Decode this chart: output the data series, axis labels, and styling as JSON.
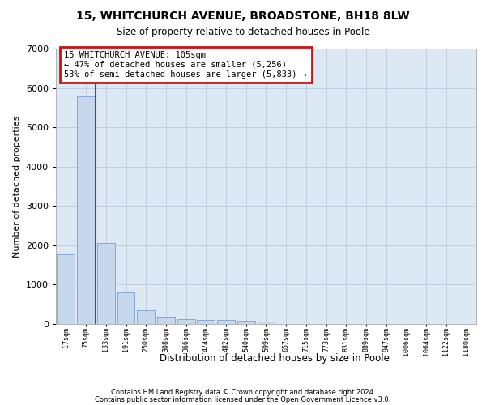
{
  "title1": "15, WHITCHURCH AVENUE, BROADSTONE, BH18 8LW",
  "title2": "Size of property relative to detached houses in Poole",
  "xlabel": "Distribution of detached houses by size in Poole",
  "ylabel": "Number of detached properties",
  "footer1": "Contains HM Land Registry data © Crown copyright and database right 2024.",
  "footer2": "Contains public sector information licensed under the Open Government Licence v3.0.",
  "annotation_line1": "15 WHITCHURCH AVENUE: 105sqm",
  "annotation_line2": "← 47% of detached houses are smaller (5,256)",
  "annotation_line3": "53% of semi-detached houses are larger (5,833) →",
  "bar_color": "#c5d8ee",
  "bar_edge_color": "#7aa0c8",
  "red_line_color": "#bb2222",
  "annotation_box_facecolor": "#ffffff",
  "annotation_box_edgecolor": "#cc1111",
  "background_color": "#ffffff",
  "axes_facecolor": "#dde8f5",
  "grid_color": "#c0cfe0",
  "categories": [
    "17sqm",
    "75sqm",
    "133sqm",
    "191sqm",
    "250sqm",
    "308sqm",
    "366sqm",
    "424sqm",
    "482sqm",
    "540sqm",
    "599sqm",
    "657sqm",
    "715sqm",
    "773sqm",
    "831sqm",
    "889sqm",
    "947sqm",
    "1006sqm",
    "1064sqm",
    "1122sqm",
    "1180sqm"
  ],
  "values": [
    1780,
    5780,
    2060,
    800,
    340,
    195,
    125,
    105,
    95,
    75,
    70,
    0,
    0,
    0,
    0,
    0,
    0,
    0,
    0,
    0,
    0
  ],
  "ylim": [
    0,
    7000
  ],
  "yticks": [
    0,
    1000,
    2000,
    3000,
    4000,
    5000,
    6000,
    7000
  ],
  "red_line_x": 1.5
}
